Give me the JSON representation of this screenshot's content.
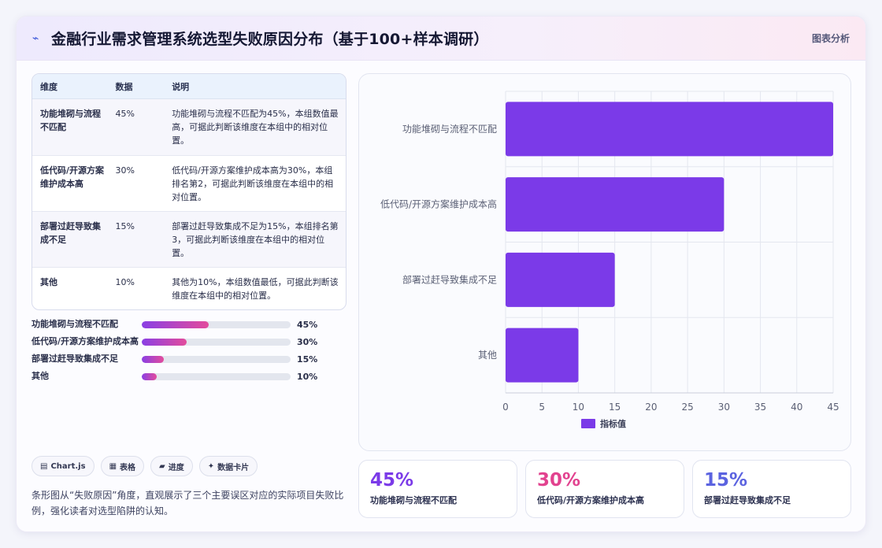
{
  "header": {
    "icon": "chart-icon",
    "title": "金融行业需求管理系统选型失败原因分布（基于100+样本调研）",
    "link": "图表分析"
  },
  "table": {
    "headers": [
      "维度",
      "数据",
      "说明"
    ],
    "rows": [
      {
        "dim": "功能堆砌与流程不匹配",
        "val": "45%",
        "desc": "功能堆砌与流程不匹配为45%，本组数值最高，可据此判断该维度在本组中的相对位置。"
      },
      {
        "dim": "低代码/开源方案维护成本高",
        "val": "30%",
        "desc": "低代码/开源方案维护成本高为30%，本组排名第2，可据此判断该维度在本组中的相对位置。"
      },
      {
        "dim": "部署过赶导致集成不足",
        "val": "15%",
        "desc": "部署过赶导致集成不足为15%，本组排名第3，可据此判断该维度在本组中的相对位置。"
      },
      {
        "dim": "其他",
        "val": "10%",
        "desc": "其他为10%，本组数值最低，可据此判断该维度在本组中的相对位置。"
      }
    ]
  },
  "progress": [
    {
      "label": "功能堆砌与流程不匹配",
      "value": 45,
      "text": "45%"
    },
    {
      "label": "低代码/开源方案维护成本高",
      "value": 30,
      "text": "30%"
    },
    {
      "label": "部署过赶导致集成不足",
      "value": 15,
      "text": "15%"
    },
    {
      "label": "其他",
      "value": 10,
      "text": "10%"
    }
  ],
  "tags": [
    {
      "icon": "chart-icon",
      "glyph": "▤",
      "label": "Chart.js"
    },
    {
      "icon": "table-icon",
      "glyph": "▦",
      "label": "表格"
    },
    {
      "icon": "progress-icon",
      "glyph": "▰",
      "label": "进度"
    },
    {
      "icon": "sparkle-icon",
      "glyph": "✦",
      "label": "数据卡片"
    }
  ],
  "note": "条形图从“失败原因”角度，直观展示了三个主要误区对应的实际项目失败比例，强化读者对选型陷阱的认知。",
  "chart_data": {
    "type": "bar",
    "orientation": "horizontal",
    "categories": [
      "功能堆砌与流程不匹配",
      "低代码/开源方案维护成本高",
      "部署过赶导致集成不足",
      "其他"
    ],
    "series": [
      {
        "name": "指标值",
        "values": [
          45,
          30,
          15,
          10
        ]
      }
    ],
    "xlim": [
      0,
      45
    ],
    "xticks": [
      0,
      5,
      10,
      15,
      20,
      25,
      30,
      35,
      40,
      45
    ],
    "grid": true,
    "legend": "bottom",
    "color": "#7b3ae8"
  },
  "stats": [
    {
      "value": "45%",
      "label": "功能堆砌与流程不匹配",
      "color": "#7b3ae8"
    },
    {
      "value": "30%",
      "label": "低代码/开源方案维护成本高",
      "color": "#e2428f"
    },
    {
      "value": "15%",
      "label": "部署过赶导致集成不足",
      "color": "#5b63e0"
    }
  ]
}
